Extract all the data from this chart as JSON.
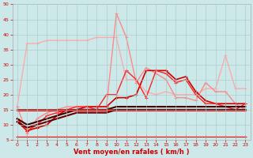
{
  "xlabel": "Vent moyen/en rafales ( km/h )",
  "background_color": "#cce8e8",
  "grid_color": "#aacccc",
  "xlim": [
    -0.5,
    23.5
  ],
  "ylim": [
    5,
    50
  ],
  "yticks": [
    5,
    10,
    15,
    20,
    25,
    30,
    35,
    40,
    45,
    50
  ],
  "xticks": [
    0,
    1,
    2,
    3,
    4,
    5,
    6,
    7,
    8,
    9,
    10,
    11,
    12,
    13,
    14,
    15,
    16,
    17,
    18,
    19,
    20,
    21,
    22,
    23
  ],
  "series": [
    {
      "x": [
        0,
        1,
        2,
        3,
        4,
        5,
        6,
        7,
        8,
        9,
        10,
        11,
        12,
        13,
        14,
        15,
        16,
        17,
        18,
        19,
        20,
        21,
        22,
        23
      ],
      "y": [
        16,
        37,
        37,
        38,
        38,
        38,
        38,
        38,
        39,
        39,
        39,
        25,
        25,
        21,
        20,
        21,
        20,
        20,
        20,
        22,
        22,
        33,
        22,
        22
      ],
      "color": "#ffaaaa",
      "lw": 1.0,
      "marker": "+"
    },
    {
      "x": [
        0,
        1,
        2,
        3,
        4,
        5,
        6,
        7,
        8,
        9,
        10,
        11,
        12,
        13,
        14,
        15,
        16,
        17,
        18,
        19,
        20,
        21,
        22,
        23
      ],
      "y": [
        16,
        7,
        12,
        14,
        15,
        16,
        16,
        16,
        16,
        16,
        47,
        39,
        24,
        29,
        27,
        25,
        19,
        19,
        18,
        24,
        21,
        21,
        17,
        15
      ],
      "color": "#ff8888",
      "lw": 1.0,
      "marker": "+"
    },
    {
      "x": [
        0,
        1,
        2,
        3,
        4,
        5,
        6,
        7,
        8,
        9,
        10,
        11,
        12,
        13,
        14,
        15,
        16,
        17,
        18,
        19,
        20,
        21,
        22,
        23
      ],
      "y": [
        11,
        8,
        9,
        10,
        13,
        15,
        15,
        16,
        16,
        16,
        19,
        19,
        20,
        28,
        28,
        28,
        25,
        26,
        21,
        18,
        17,
        17,
        17,
        17
      ],
      "color": "#cc0000",
      "lw": 1.2,
      "marker": "+"
    },
    {
      "x": [
        0,
        1,
        2,
        3,
        4,
        5,
        6,
        7,
        8,
        9,
        10,
        11,
        12,
        13,
        14,
        15,
        16,
        17,
        18,
        19,
        20,
        21,
        22,
        23
      ],
      "y": [
        12,
        8,
        10,
        13,
        14,
        15,
        16,
        16,
        15,
        20,
        20,
        28,
        25,
        19,
        28,
        27,
        24,
        25,
        20,
        17,
        17,
        16,
        15,
        17
      ],
      "color": "#ff2222",
      "lw": 1.0,
      "marker": "+"
    },
    {
      "x": [
        0,
        1,
        2,
        3,
        4,
        5,
        6,
        7,
        8,
        9,
        10,
        11,
        12,
        13,
        14,
        15,
        16,
        17,
        18,
        19,
        20,
        21,
        22,
        23
      ],
      "y": [
        12,
        10,
        11,
        12,
        13,
        14,
        15,
        15,
        15,
        15,
        16,
        16,
        16,
        16,
        16,
        16,
        16,
        16,
        16,
        16,
        16,
        16,
        16,
        16
      ],
      "color": "#440000",
      "lw": 1.5,
      "marker": null
    },
    {
      "x": [
        0,
        1,
        2,
        3,
        4,
        5,
        6,
        7,
        8,
        9,
        10,
        11,
        12,
        13,
        14,
        15,
        16,
        17,
        18,
        19,
        20,
        21,
        22,
        23
      ],
      "y": [
        15,
        15,
        15,
        15,
        15,
        15,
        15,
        15,
        15,
        15,
        15,
        15,
        15,
        15,
        15,
        15,
        15,
        15,
        15,
        15,
        15,
        15,
        15,
        15
      ],
      "color": "#cc0000",
      "lw": 2.0,
      "marker": null
    },
    {
      "x": [
        0,
        1,
        2,
        3,
        4,
        5,
        6,
        7,
        8,
        9,
        10,
        11,
        12,
        13,
        14,
        15,
        16,
        17,
        18,
        19,
        20,
        21,
        22,
        23
      ],
      "y": [
        11,
        9,
        10,
        11,
        12,
        13,
        14,
        14,
        14,
        14,
        15,
        15,
        15,
        15,
        15,
        15,
        15,
        15,
        15,
        15,
        15,
        15,
        15,
        15
      ],
      "color": "#660000",
      "lw": 1.5,
      "marker": null
    },
    {
      "x": [
        0,
        1,
        2,
        3,
        4,
        5,
        6,
        7,
        8,
        9,
        10,
        11,
        12,
        13,
        14,
        15,
        16,
        17,
        18,
        19,
        20,
        21,
        22,
        23
      ],
      "y": [
        6,
        6,
        6,
        6,
        6,
        6,
        6,
        6,
        6,
        6,
        6,
        6,
        6,
        6,
        6,
        6,
        6,
        6,
        6,
        6,
        6,
        6,
        6,
        6
      ],
      "color": "#ff0000",
      "lw": 0.8,
      "marker": "+"
    }
  ]
}
